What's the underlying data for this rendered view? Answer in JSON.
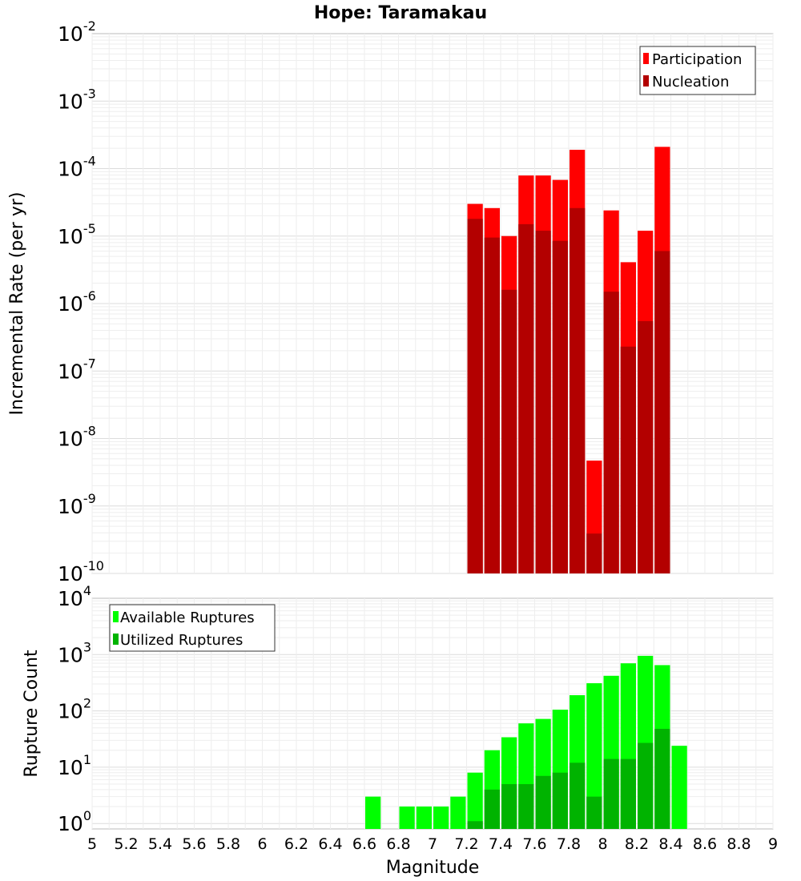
{
  "chart_data": [
    {
      "type": "bar",
      "title": "Hope: Taramakau",
      "xlabel": "Magnitude",
      "ylabel": "Incremental Rate (per yr)",
      "yscale": "log",
      "ylim_log10": [
        -10,
        -2
      ],
      "ytick_exponents": [
        "-10",
        "-9",
        "-8",
        "-7",
        "-6",
        "-5",
        "-4",
        "-3",
        "-2"
      ],
      "grid": true,
      "legend_position": "top-right",
      "colors": {
        "participation": "#ff0000",
        "nucleation": "#b30000"
      },
      "x": [
        7.25,
        7.35,
        7.45,
        7.55,
        7.65,
        7.75,
        7.85,
        7.95,
        8.05,
        8.15,
        8.25,
        8.35
      ],
      "series": [
        {
          "name": "Participation",
          "values": [
            3e-05,
            2.6e-05,
            1e-05,
            7.9e-05,
            7.9e-05,
            6.8e-05,
            0.00019,
            4.7e-09,
            2.4e-05,
            4.1e-06,
            1.2e-05,
            0.00021
          ]
        },
        {
          "name": "Nucleation",
          "values": [
            1.8e-05,
            9.5e-06,
            1.6e-06,
            1.5e-05,
            1.2e-05,
            8.5e-06,
            2.6e-05,
            3.9e-10,
            1.5e-06,
            2.3e-07,
            5.5e-07,
            6e-06
          ]
        }
      ]
    },
    {
      "type": "bar",
      "xlabel": "Magnitude",
      "ylabel": "Rupture Count",
      "yscale": "log",
      "ylim": [
        0.8,
        10000
      ],
      "ytick_exponents": [
        "0",
        "1",
        "2",
        "3",
        "4"
      ],
      "xlim": [
        5,
        9
      ],
      "xticks": [
        "5",
        "5.2",
        "5.4",
        "5.6",
        "5.8",
        "6",
        "6.2",
        "6.4",
        "6.6",
        "6.8",
        "7",
        "7.2",
        "7.4",
        "7.6",
        "7.8",
        "8",
        "8.2",
        "8.4",
        "8.6",
        "8.8",
        "9"
      ],
      "grid": true,
      "legend_position": "top-left",
      "colors": {
        "available": "#00ff00",
        "utilized": "#00b300"
      },
      "x": [
        6.65,
        6.85,
        6.95,
        7.05,
        7.15,
        7.25,
        7.35,
        7.45,
        7.55,
        7.65,
        7.75,
        7.85,
        7.95,
        8.05,
        8.15,
        8.25,
        8.35,
        8.45
      ],
      "series": [
        {
          "name": "Available Ruptures",
          "values": [
            3,
            2,
            2,
            2,
            3,
            8,
            20,
            34,
            60,
            72,
            105,
            190,
            310,
            420,
            700,
            950,
            650,
            24
          ]
        },
        {
          "name": "Utilized Ruptures",
          "values": [
            null,
            null,
            null,
            null,
            null,
            1.1,
            4,
            5,
            5,
            7,
            8,
            12,
            3,
            14,
            14,
            27,
            48,
            null
          ]
        }
      ]
    }
  ]
}
